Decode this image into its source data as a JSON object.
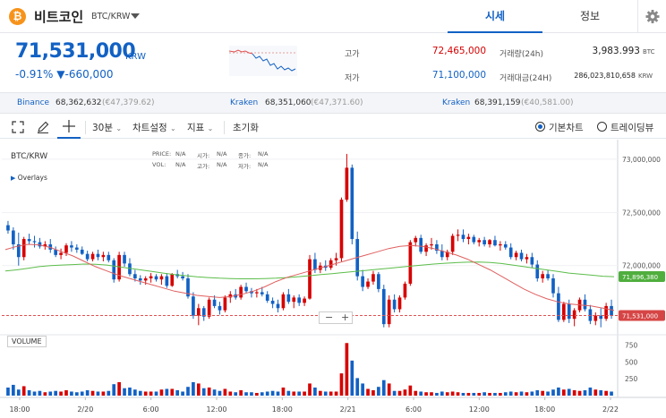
{
  "header": {
    "coin_name": "비트코인",
    "pair": "BTC/KRW",
    "tabs": [
      "시세",
      "정보"
    ]
  },
  "price": {
    "value": "71,531,000",
    "unit": "KRW",
    "change_pct": "-0.91%",
    "change_abs": "▼-660,000"
  },
  "stats": {
    "high_label": "고가",
    "high_value": "72,465,000",
    "low_label": "저가",
    "low_value": "71,100,000",
    "vol_label": "거래량(24h)",
    "vol_value": "3,983.993",
    "vol_unit": "BTC",
    "amt_label": "거래대금(24H)",
    "amt_value": "286,023,810,658",
    "amt_unit": "KRW"
  },
  "exchanges": [
    {
      "name": "Binance",
      "value": "68,362,632",
      "usd": "(€47,379.62)"
    },
    {
      "name": "Kraken",
      "value": "68,351,060",
      "usd": "(€47,371.60)"
    },
    {
      "name": "Kraken",
      "value": "68,391,159",
      "usd": "(€40,581.00)"
    }
  ],
  "toolbar": {
    "interval": "30분",
    "chart_settings": "차트설정",
    "indicators": "지표",
    "reset": "초기화",
    "basic_chart": "기본차트",
    "tradingview": "트레이딩뷰"
  },
  "chart": {
    "symbol": "BTC/KRW",
    "overlays": "Overlays",
    "ohlc_price_lbl": "PRICE:",
    "ohlc_na": "N/A",
    "ohlc_open_lbl": "시가:",
    "ohlc_close_lbl": "종가:",
    "ohlc_vol_lbl": "VOL:",
    "ohlc_high_lbl": "고가:",
    "ohlc_low_lbl": "저가:",
    "volume_label": "VOLUME",
    "zoom": "−  +",
    "y_ticks": [
      "73,000,000",
      "72,500,000",
      "72,000,000"
    ],
    "ma_label": "71,896,380",
    "last_label": "71,531,000",
    "vol_ticks": [
      "750",
      "500",
      "250"
    ],
    "x_ticks": [
      "18:00",
      "2/20",
      "6:00",
      "12:00",
      "18:00",
      "2/21",
      "6:00",
      "12:00",
      "18:00",
      "2/22"
    ]
  },
  "colors": {
    "accent": "#1261c4",
    "down": "#1261c4",
    "up": "#d60000",
    "ma_short": "#e06060",
    "ma_long": "#5cbd4a"
  },
  "chart_data": {
    "type": "candlestick",
    "y_range": [
      71350000,
      73100000
    ],
    "vol_range": [
      0,
      850
    ],
    "candles": [
      [
        72380000,
        72420000,
        72300000,
        72330000,
        120
      ],
      [
        72330000,
        72360000,
        72150000,
        72200000,
        160
      ],
      [
        72200000,
        72310000,
        72000000,
        72080000,
        90
      ],
      [
        72080000,
        72270000,
        72050000,
        72250000,
        140
      ],
      [
        72250000,
        72300000,
        72200000,
        72230000,
        80
      ],
      [
        72230000,
        72280000,
        72170000,
        72220000,
        60
      ],
      [
        72220000,
        72260000,
        72160000,
        72180000,
        70
      ],
      [
        72180000,
        72230000,
        72150000,
        72200000,
        50
      ],
      [
        72200000,
        72250000,
        72120000,
        72150000,
        60
      ],
      [
        72150000,
        72180000,
        72080000,
        72100000,
        70
      ],
      [
        72100000,
        72160000,
        72060000,
        72120000,
        60
      ],
      [
        72120000,
        72210000,
        72090000,
        72190000,
        80
      ],
      [
        72190000,
        72230000,
        72130000,
        72170000,
        60
      ],
      [
        72170000,
        72200000,
        72120000,
        72150000,
        50
      ],
      [
        72150000,
        72180000,
        72100000,
        72110000,
        60
      ],
      [
        72110000,
        72140000,
        72040000,
        72060000,
        80
      ],
      [
        72060000,
        72130000,
        72040000,
        72110000,
        70
      ],
      [
        72110000,
        72150000,
        72050000,
        72080000,
        60
      ],
      [
        72080000,
        72130000,
        72040000,
        72100000,
        60
      ],
      [
        72100000,
        72130000,
        72030000,
        72050000,
        70
      ],
      [
        72050000,
        72070000,
        71840000,
        71870000,
        170
      ],
      [
        71870000,
        72130000,
        71850000,
        72100000,
        200
      ],
      [
        72100000,
        72130000,
        71990000,
        72020000,
        110
      ],
      [
        72020000,
        72070000,
        71900000,
        71920000,
        120
      ],
      [
        71920000,
        71960000,
        71850000,
        71880000,
        90
      ],
      [
        71880000,
        71910000,
        71820000,
        71860000,
        70
      ],
      [
        71860000,
        71900000,
        71820000,
        71880000,
        60
      ],
      [
        71880000,
        71930000,
        71840000,
        71900000,
        60
      ],
      [
        71900000,
        71920000,
        71850000,
        71870000,
        60
      ],
      [
        71870000,
        71920000,
        71820000,
        71900000,
        90
      ],
      [
        71900000,
        71930000,
        71790000,
        71810000,
        100
      ],
      [
        71810000,
        71930000,
        71800000,
        71920000,
        100
      ],
      [
        71920000,
        71960000,
        71880000,
        71900000,
        80
      ],
      [
        71900000,
        71940000,
        71860000,
        71880000,
        60
      ],
      [
        71880000,
        71920000,
        71690000,
        71710000,
        130
      ],
      [
        71710000,
        71750000,
        71500000,
        71530000,
        200
      ],
      [
        71530000,
        71640000,
        71440000,
        71600000,
        180
      ],
      [
        71600000,
        71620000,
        71480000,
        71520000,
        110
      ],
      [
        71520000,
        71700000,
        71500000,
        71680000,
        120
      ],
      [
        71680000,
        71720000,
        71600000,
        71620000,
        90
      ],
      [
        71620000,
        71660000,
        71540000,
        71580000,
        70
      ],
      [
        71580000,
        71720000,
        71560000,
        71700000,
        100
      ],
      [
        71700000,
        71760000,
        71650000,
        71730000,
        60
      ],
      [
        71730000,
        71780000,
        71680000,
        71700000,
        50
      ],
      [
        71700000,
        71820000,
        71680000,
        71800000,
        80
      ],
      [
        71800000,
        71840000,
        71740000,
        71760000,
        50
      ],
      [
        71760000,
        71790000,
        71700000,
        71740000,
        50
      ],
      [
        71740000,
        71780000,
        71700000,
        71750000,
        40
      ],
      [
        71750000,
        71800000,
        71710000,
        71730000,
        50
      ],
      [
        71730000,
        71760000,
        71650000,
        71670000,
        60
      ],
      [
        71670000,
        71700000,
        71600000,
        71640000,
        70
      ],
      [
        71640000,
        71680000,
        71560000,
        71600000,
        60
      ],
      [
        71600000,
        71750000,
        71580000,
        71730000,
        120
      ],
      [
        71730000,
        71780000,
        71640000,
        71660000,
        70
      ],
      [
        71660000,
        71720000,
        71600000,
        71700000,
        60
      ],
      [
        71700000,
        71730000,
        71620000,
        71650000,
        60
      ],
      [
        71650000,
        71710000,
        71620000,
        71690000,
        60
      ],
      [
        71690000,
        72100000,
        71680000,
        72060000,
        180
      ],
      [
        72060000,
        72120000,
        71930000,
        71960000,
        120
      ],
      [
        71960000,
        72030000,
        71930000,
        72000000,
        70
      ],
      [
        72000000,
        72050000,
        71950000,
        71980000,
        60
      ],
      [
        71980000,
        72070000,
        71960000,
        72050000,
        60
      ],
      [
        72050000,
        72120000,
        72000000,
        72070000,
        60
      ],
      [
        72070000,
        72640000,
        72040000,
        72620000,
        330
      ],
      [
        72620000,
        73050000,
        72600000,
        72920000,
        780
      ],
      [
        72920000,
        72950000,
        72200000,
        72250000,
        520
      ],
      [
        72250000,
        72320000,
        71860000,
        71900000,
        260
      ],
      [
        71900000,
        71960000,
        71760000,
        71800000,
        180
      ],
      [
        71800000,
        71880000,
        71780000,
        71850000,
        100
      ],
      [
        71850000,
        71950000,
        71820000,
        71920000,
        80
      ],
      [
        71920000,
        71940000,
        71750000,
        71780000,
        130
      ],
      [
        71780000,
        71820000,
        71420000,
        71450000,
        230
      ],
      [
        71450000,
        71720000,
        71420000,
        71680000,
        180
      ],
      [
        71680000,
        71730000,
        71560000,
        71590000,
        70
      ],
      [
        71590000,
        71720000,
        71560000,
        71700000,
        70
      ],
      [
        71700000,
        71850000,
        71680000,
        71830000,
        90
      ],
      [
        71830000,
        72240000,
        71810000,
        72220000,
        150
      ],
      [
        72220000,
        72280000,
        72180000,
        72260000,
        70
      ],
      [
        72260000,
        72290000,
        72110000,
        72130000,
        60
      ],
      [
        72130000,
        72210000,
        72090000,
        72190000,
        50
      ],
      [
        72190000,
        72260000,
        72150000,
        72200000,
        50
      ],
      [
        72200000,
        72240000,
        72110000,
        72140000,
        40
      ],
      [
        72140000,
        72200000,
        72050000,
        72080000,
        60
      ],
      [
        72080000,
        72150000,
        72050000,
        72130000,
        50
      ],
      [
        72130000,
        72300000,
        72100000,
        72280000,
        60
      ],
      [
        72280000,
        72340000,
        72230000,
        72290000,
        50
      ],
      [
        72290000,
        72340000,
        72220000,
        72250000,
        40
      ],
      [
        72250000,
        72300000,
        72200000,
        72270000,
        40
      ],
      [
        72270000,
        72290000,
        72200000,
        72220000,
        40
      ],
      [
        72220000,
        72260000,
        72180000,
        72240000,
        40
      ],
      [
        72240000,
        72270000,
        72180000,
        72200000,
        50
      ],
      [
        72200000,
        72250000,
        72170000,
        72240000,
        40
      ],
      [
        72240000,
        72280000,
        72180000,
        72190000,
        40
      ],
      [
        72190000,
        72230000,
        72140000,
        72200000,
        40
      ],
      [
        72200000,
        72230000,
        72150000,
        72170000,
        50
      ],
      [
        72170000,
        72210000,
        72060000,
        72080000,
        60
      ],
      [
        72080000,
        72140000,
        72050000,
        72120000,
        50
      ],
      [
        72120000,
        72150000,
        72040000,
        72060000,
        60
      ],
      [
        72060000,
        72110000,
        72020000,
        72080000,
        50
      ],
      [
        72080000,
        72120000,
        71980000,
        72010000,
        60
      ],
      [
        72010000,
        72050000,
        71850000,
        71880000,
        80
      ],
      [
        71880000,
        71950000,
        71840000,
        71920000,
        70
      ],
      [
        71920000,
        71960000,
        71860000,
        71880000,
        60
      ],
      [
        71880000,
        71920000,
        71700000,
        71740000,
        90
      ],
      [
        71740000,
        71800000,
        71470000,
        71490000,
        120
      ],
      [
        71490000,
        71660000,
        71470000,
        71640000,
        90
      ],
      [
        71640000,
        71680000,
        71460000,
        71500000,
        100
      ],
      [
        71500000,
        71600000,
        71430000,
        71580000,
        80
      ],
      [
        71580000,
        71700000,
        71560000,
        71680000,
        70
      ],
      [
        71680000,
        71730000,
        71570000,
        71590000,
        80
      ],
      [
        71590000,
        71630000,
        71450000,
        71480000,
        120
      ],
      [
        71480000,
        71560000,
        71440000,
        71530000,
        90
      ],
      [
        71530000,
        71600000,
        71420000,
        71500000,
        80
      ],
      [
        71500000,
        71650000,
        71480000,
        71620000,
        70
      ],
      [
        71620000,
        71680000,
        71500000,
        71530000,
        60
      ]
    ],
    "ma_long": [
      71950000,
      71960000,
      71975000,
      71990000,
      72000000,
      72005000,
      72010000,
      72015000,
      72012000,
      72005000,
      71990000,
      71975000,
      71960000,
      71945000,
      71930000,
      71915000,
      71905000,
      71895000,
      71888000,
      71882000,
      71878000,
      71876000,
      71876000,
      71878000,
      71882000,
      71888000,
      71896000,
      71905000,
      71915000,
      71925000,
      71935000,
      71945000,
      71955000,
      71965000,
      71975000,
      71985000,
      71995000,
      72005000,
      72015000,
      72022000,
      72028000,
      72032000,
      72033000,
      72030000,
      72020000,
      72005000,
      71990000,
      71975000,
      71960000,
      71945000,
      71930000,
      71920000,
      71910000,
      71900000,
      71896000
    ],
    "ma_short": [
      72150000,
      72180000,
      72200000,
      72195000,
      72170000,
      72130000,
      72090000,
      72040000,
      71990000,
      71950000,
      71910000,
      71880000,
      71850000,
      71820000,
      71790000,
      71760000,
      71740000,
      71720000,
      71710000,
      71700000,
      71710000,
      71730000,
      71760000,
      71800000,
      71850000,
      71890000,
      71920000,
      71950000,
      71980000,
      72010000,
      72040000,
      72070000,
      72100000,
      72130000,
      72160000,
      72180000,
      72190000,
      72180000,
      72160000,
      72130000,
      72100000,
      72060000,
      72010000,
      71960000,
      71900000,
      71840000,
      71780000,
      71730000,
      71690000,
      71660000,
      71640000,
      71630000,
      71620000,
      71600000,
      71580000
    ]
  }
}
